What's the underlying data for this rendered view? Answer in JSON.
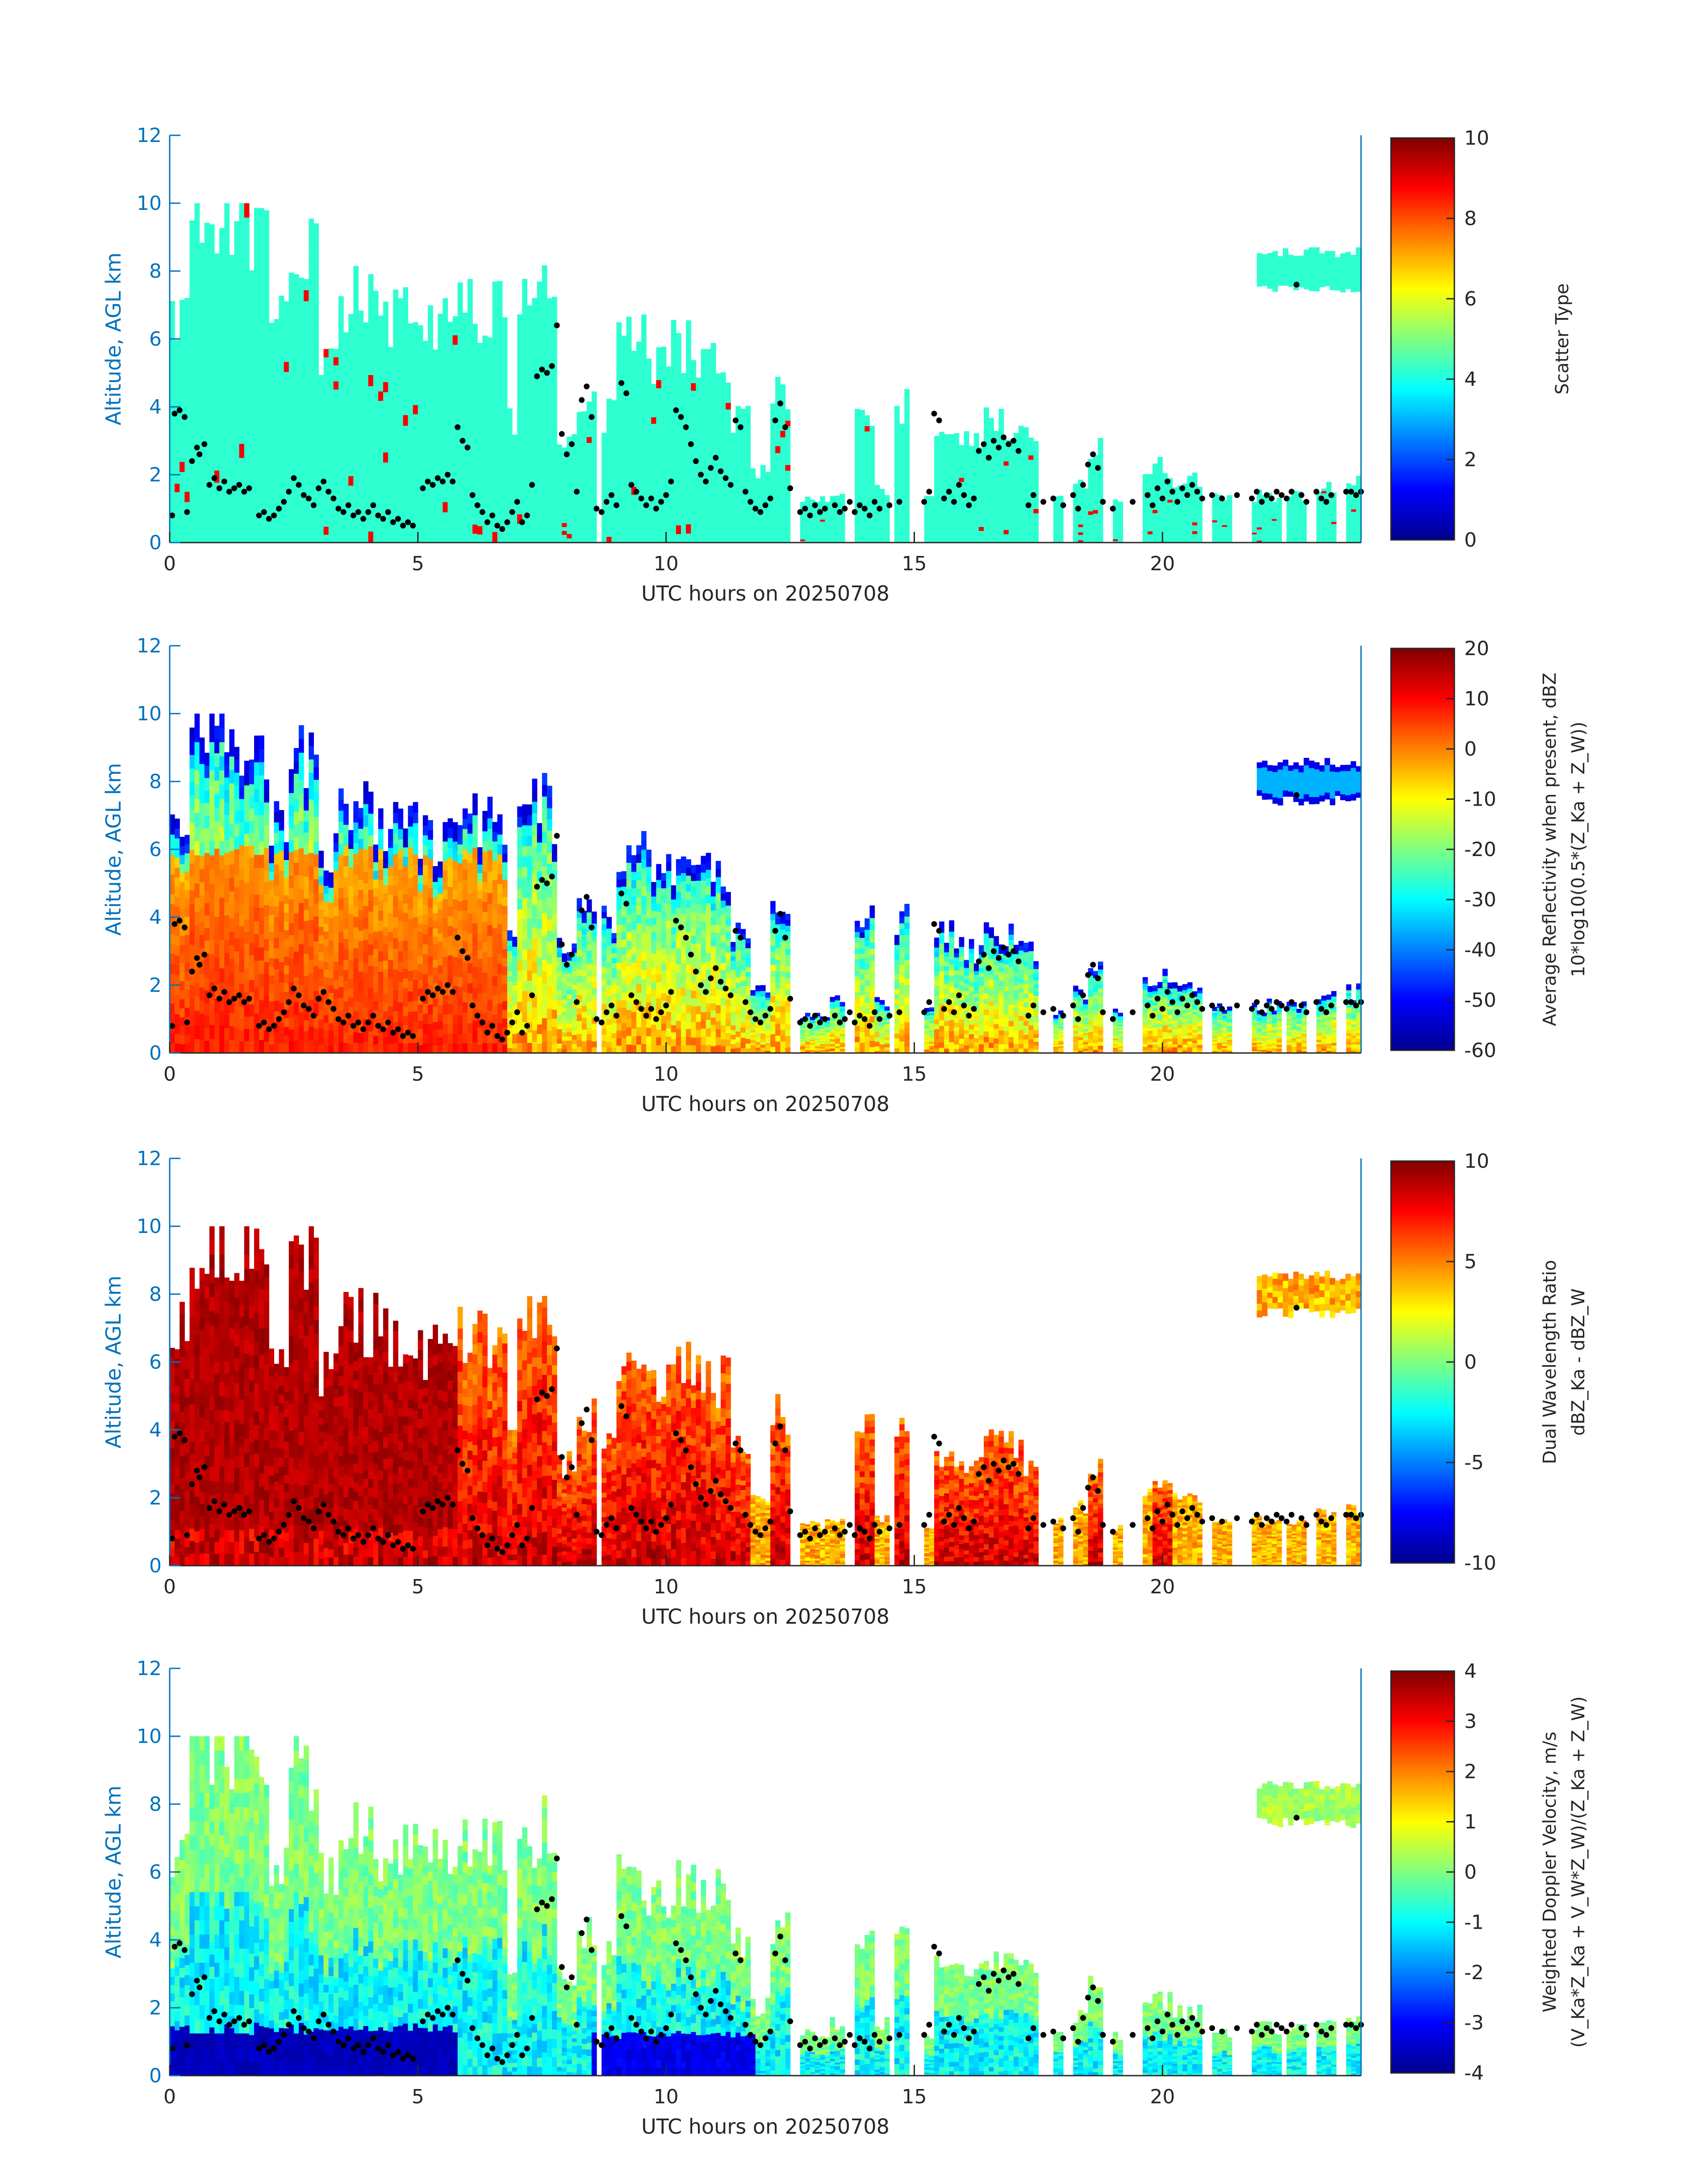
{
  "palette": {
    "axis_blue": "#0072BD",
    "axis_dark": "#262626",
    "jet": [
      "#00008F",
      "#0000FF",
      "#0080FF",
      "#00FFFF",
      "#80FF80",
      "#FFFF00",
      "#FF8000",
      "#FF0000",
      "#800000"
    ],
    "point": "#000000"
  },
  "chart_data": [
    {
      "type": "heatmap",
      "xlabel": "UTC hours on 20250708",
      "ylabel": "Altitude, AGL km",
      "xlim": [
        0,
        24
      ],
      "ylim": [
        0,
        12
      ],
      "xticks": [
        0,
        5,
        10,
        15,
        20
      ],
      "yticks": [
        0,
        2,
        4,
        6,
        8,
        10,
        12
      ],
      "colorbar": {
        "label": "Scatter Type",
        "label_sub": "",
        "clim": [
          0,
          10
        ],
        "ticks": [
          0,
          2,
          4,
          6,
          8,
          10
        ]
      },
      "dominant_value": 4.2
    },
    {
      "type": "heatmap",
      "xlabel": "UTC hours on 20250708",
      "ylabel": "Altitude, AGL km",
      "xlim": [
        0,
        24
      ],
      "ylim": [
        0,
        12
      ],
      "xticks": [
        0,
        5,
        10,
        15,
        20
      ],
      "yticks": [
        0,
        2,
        4,
        6,
        8,
        10,
        12
      ],
      "colorbar": {
        "label": "Average Reflectivity when present, dBZ",
        "label_sub": "10*log10(0.5*(Z_Ka + Z_W))",
        "clim": [
          -60,
          20
        ],
        "ticks": [
          -60,
          -50,
          -40,
          -30,
          -20,
          -10,
          0,
          10,
          20
        ]
      }
    },
    {
      "type": "heatmap",
      "xlabel": "UTC hours on 20250708",
      "ylabel": "Altitude, AGL km",
      "xlim": [
        0,
        24
      ],
      "ylim": [
        0,
        12
      ],
      "xticks": [
        0,
        5,
        10,
        15,
        20
      ],
      "yticks": [
        0,
        2,
        4,
        6,
        8,
        10,
        12
      ],
      "colorbar": {
        "label": "Dual Wavelength Ratio",
        "label_sub": "dBZ_Ka - dBZ_W",
        "clim": [
          -10,
          10
        ],
        "ticks": [
          -10,
          -5,
          0,
          5,
          10
        ]
      }
    },
    {
      "type": "heatmap",
      "xlabel": "UTC hours on 20250708",
      "ylabel": "Altitude, AGL km",
      "xlim": [
        0,
        24
      ],
      "ylim": [
        0,
        12
      ],
      "xticks": [
        0,
        5,
        10,
        15,
        20
      ],
      "yticks": [
        0,
        2,
        4,
        6,
        8,
        10,
        12
      ],
      "colorbar": {
        "label": "Weighted Doppler Velocity, m/s",
        "label_sub": "(V_Ka*Z_Ka + V_W*Z_W)/(Z_Ka + Z_W)",
        "clim": [
          -4,
          4
        ],
        "ticks": [
          -4,
          -3,
          -2,
          -1,
          0,
          1,
          2,
          3,
          4
        ]
      }
    }
  ],
  "echo_segments": [
    {
      "t0": 0.0,
      "t1": 0.4,
      "top": 6.8
    },
    {
      "t0": 0.4,
      "t1": 1.2,
      "top": 9.6
    },
    {
      "t0": 1.2,
      "t1": 2.0,
      "top": 9.4
    },
    {
      "t0": 2.0,
      "t1": 2.4,
      "top": 6.5
    },
    {
      "t0": 2.4,
      "t1": 3.0,
      "top": 8.8
    },
    {
      "t0": 3.0,
      "t1": 3.4,
      "top": 5.8
    },
    {
      "t0": 3.4,
      "t1": 4.2,
      "top": 7.2
    },
    {
      "t0": 4.2,
      "t1": 5.0,
      "top": 6.6
    },
    {
      "t0": 5.0,
      "t1": 5.8,
      "top": 6.4
    },
    {
      "t0": 5.8,
      "t1": 6.8,
      "top": 6.8
    },
    {
      "t0": 6.8,
      "t1": 7.0,
      "top": 3.5
    },
    {
      "t0": 7.0,
      "t1": 7.8,
      "top": 7.2
    },
    {
      "t0": 7.8,
      "t1": 8.2,
      "top": 3.0
    },
    {
      "t0": 8.2,
      "t1": 8.6,
      "top": 4.4
    },
    {
      "t0": 8.7,
      "t1": 9.0,
      "top": 3.8
    },
    {
      "t0": 9.0,
      "t1": 9.6,
      "top": 6.0
    },
    {
      "t0": 9.6,
      "t1": 10.1,
      "top": 5.4
    },
    {
      "t0": 10.1,
      "t1": 10.6,
      "top": 5.8
    },
    {
      "t0": 10.6,
      "t1": 11.3,
      "top": 5.4
    },
    {
      "t0": 11.3,
      "t1": 11.7,
      "top": 3.8
    },
    {
      "t0": 11.7,
      "t1": 12.1,
      "top": 2.0
    },
    {
      "t0": 12.1,
      "t1": 12.5,
      "top": 4.4
    },
    {
      "t0": 12.7,
      "t1": 13.3,
      "top": 1.2
    },
    {
      "t0": 13.3,
      "t1": 13.6,
      "top": 1.5
    },
    {
      "t0": 13.8,
      "t1": 14.2,
      "top": 4.0
    },
    {
      "t0": 14.2,
      "t1": 14.5,
      "top": 1.5
    },
    {
      "t0": 14.6,
      "t1": 14.9,
      "top": 4.0
    },
    {
      "t0": 15.2,
      "t1": 15.4,
      "top": 1.2
    },
    {
      "t0": 15.4,
      "t1": 15.9,
      "top": 3.4
    },
    {
      "t0": 15.9,
      "t1": 16.4,
      "top": 3.0
    },
    {
      "t0": 16.4,
      "t1": 17.2,
      "top": 3.5
    },
    {
      "t0": 17.2,
      "t1": 17.5,
      "top": 3.0
    },
    {
      "t0": 17.8,
      "t1": 18.0,
      "top": 1.3
    },
    {
      "t0": 18.2,
      "t1": 18.5,
      "top": 1.8
    },
    {
      "t0": 18.5,
      "t1": 18.8,
      "top": 2.8
    },
    {
      "t0": 19.0,
      "t1": 19.2,
      "top": 1.2
    },
    {
      "t0": 19.6,
      "t1": 20.2,
      "top": 2.2
    },
    {
      "t0": 20.2,
      "t1": 20.8,
      "top": 1.9
    },
    {
      "t0": 21.0,
      "t1": 21.4,
      "top": 1.3
    },
    {
      "t0": 21.8,
      "t1": 22.4,
      "top": 1.4
    },
    {
      "t0": 22.5,
      "t1": 22.9,
      "top": 1.4
    },
    {
      "t0": 23.1,
      "t1": 23.5,
      "top": 1.6
    },
    {
      "t0": 23.7,
      "t1": 24.0,
      "top": 1.8
    }
  ],
  "upper_cloud": {
    "t0": 21.9,
    "t1": 24.0,
    "base": 7.3,
    "top": 8.7
  },
  "cloud_base_points": [
    [
      0.05,
      0.8
    ],
    [
      0.1,
      3.8
    ],
    [
      0.2,
      3.9
    ],
    [
      0.3,
      3.7
    ],
    [
      0.35,
      0.9
    ],
    [
      0.45,
      2.4
    ],
    [
      0.55,
      2.8
    ],
    [
      0.6,
      2.6
    ],
    [
      0.7,
      2.9
    ],
    [
      0.8,
      1.7
    ],
    [
      0.9,
      1.9
    ],
    [
      1.0,
      1.6
    ],
    [
      1.1,
      1.8
    ],
    [
      1.2,
      1.5
    ],
    [
      1.3,
      1.6
    ],
    [
      1.4,
      1.7
    ],
    [
      1.5,
      1.5
    ],
    [
      1.6,
      1.6
    ],
    [
      1.8,
      0.8
    ],
    [
      1.9,
      0.9
    ],
    [
      2.0,
      0.7
    ],
    [
      2.1,
      0.8
    ],
    [
      2.2,
      1.0
    ],
    [
      2.3,
      1.2
    ],
    [
      2.4,
      1.5
    ],
    [
      2.5,
      1.9
    ],
    [
      2.6,
      1.7
    ],
    [
      2.7,
      1.4
    ],
    [
      2.8,
      1.3
    ],
    [
      2.9,
      1.1
    ],
    [
      3.0,
      1.6
    ],
    [
      3.1,
      1.8
    ],
    [
      3.2,
      1.5
    ],
    [
      3.3,
      1.3
    ],
    [
      3.4,
      1.0
    ],
    [
      3.5,
      0.9
    ],
    [
      3.6,
      1.1
    ],
    [
      3.7,
      0.8
    ],
    [
      3.8,
      0.9
    ],
    [
      3.9,
      0.7
    ],
    [
      4.0,
      0.9
    ],
    [
      4.1,
      1.1
    ],
    [
      4.2,
      0.8
    ],
    [
      4.3,
      0.7
    ],
    [
      4.4,
      0.9
    ],
    [
      4.5,
      0.6
    ],
    [
      4.6,
      0.7
    ],
    [
      4.7,
      0.5
    ],
    [
      4.8,
      0.6
    ],
    [
      4.9,
      0.5
    ],
    [
      5.1,
      1.6
    ],
    [
      5.2,
      1.8
    ],
    [
      5.3,
      1.7
    ],
    [
      5.4,
      1.9
    ],
    [
      5.5,
      1.8
    ],
    [
      5.6,
      2.0
    ],
    [
      5.7,
      1.8
    ],
    [
      5.8,
      3.4
    ],
    [
      5.9,
      3.0
    ],
    [
      6.0,
      2.8
    ],
    [
      6.1,
      1.4
    ],
    [
      6.2,
      1.1
    ],
    [
      6.3,
      0.9
    ],
    [
      6.4,
      0.6
    ],
    [
      6.5,
      0.8
    ],
    [
      6.6,
      0.5
    ],
    [
      6.7,
      0.4
    ],
    [
      6.8,
      0.6
    ],
    [
      6.9,
      0.9
    ],
    [
      7.0,
      1.2
    ],
    [
      7.1,
      0.6
    ],
    [
      7.2,
      0.8
    ],
    [
      7.3,
      1.7
    ],
    [
      7.4,
      4.9
    ],
    [
      7.5,
      5.1
    ],
    [
      7.6,
      5.0
    ],
    [
      7.7,
      5.2
    ],
    [
      7.8,
      6.4
    ],
    [
      7.9,
      3.2
    ],
    [
      8.0,
      2.6
    ],
    [
      8.1,
      2.9
    ],
    [
      8.2,
      1.5
    ],
    [
      8.3,
      4.2
    ],
    [
      8.4,
      4.6
    ],
    [
      8.5,
      3.7
    ],
    [
      8.6,
      1.0
    ],
    [
      8.7,
      0.9
    ],
    [
      8.8,
      1.2
    ],
    [
      8.9,
      1.4
    ],
    [
      9.0,
      1.1
    ],
    [
      9.1,
      4.7
    ],
    [
      9.2,
      4.4
    ],
    [
      9.3,
      1.7
    ],
    [
      9.4,
      1.5
    ],
    [
      9.5,
      1.3
    ],
    [
      9.6,
      1.1
    ],
    [
      9.7,
      1.3
    ],
    [
      9.8,
      1.0
    ],
    [
      9.9,
      1.2
    ],
    [
      10.0,
      1.4
    ],
    [
      10.1,
      1.8
    ],
    [
      10.2,
      3.9
    ],
    [
      10.3,
      3.7
    ],
    [
      10.4,
      3.4
    ],
    [
      10.5,
      2.9
    ],
    [
      10.6,
      2.4
    ],
    [
      10.7,
      2.0
    ],
    [
      10.8,
      1.8
    ],
    [
      10.9,
      2.2
    ],
    [
      11.0,
      2.5
    ],
    [
      11.1,
      2.1
    ],
    [
      11.2,
      1.9
    ],
    [
      11.3,
      1.7
    ],
    [
      11.4,
      3.6
    ],
    [
      11.5,
      3.4
    ],
    [
      11.6,
      1.5
    ],
    [
      11.7,
      1.2
    ],
    [
      11.8,
      1.0
    ],
    [
      11.9,
      0.9
    ],
    [
      12.0,
      1.1
    ],
    [
      12.1,
      1.3
    ],
    [
      12.2,
      3.6
    ],
    [
      12.3,
      4.1
    ],
    [
      12.4,
      3.4
    ],
    [
      12.5,
      1.6
    ],
    [
      12.7,
      0.9
    ],
    [
      12.8,
      1.0
    ],
    [
      12.9,
      0.8
    ],
    [
      13.0,
      1.1
    ],
    [
      13.1,
      0.9
    ],
    [
      13.2,
      1.0
    ],
    [
      13.4,
      1.1
    ],
    [
      13.5,
      0.9
    ],
    [
      13.6,
      1.0
    ],
    [
      13.7,
      1.2
    ],
    [
      13.8,
      0.9
    ],
    [
      13.9,
      1.1
    ],
    [
      14.0,
      1.0
    ],
    [
      14.1,
      0.8
    ],
    [
      14.2,
      1.2
    ],
    [
      14.3,
      1.0
    ],
    [
      14.5,
      1.1
    ],
    [
      14.7,
      1.2
    ],
    [
      15.2,
      1.2
    ],
    [
      15.3,
      1.5
    ],
    [
      15.4,
      3.8
    ],
    [
      15.5,
      3.6
    ],
    [
      15.6,
      1.3
    ],
    [
      15.7,
      1.5
    ],
    [
      15.8,
      1.2
    ],
    [
      15.9,
      1.7
    ],
    [
      16.0,
      1.4
    ],
    [
      16.1,
      1.1
    ],
    [
      16.2,
      1.3
    ],
    [
      16.3,
      2.7
    ],
    [
      16.4,
      2.9
    ],
    [
      16.5,
      2.5
    ],
    [
      16.6,
      3.0
    ],
    [
      16.7,
      2.8
    ],
    [
      16.8,
      3.1
    ],
    [
      16.9,
      2.9
    ],
    [
      17.0,
      3.0
    ],
    [
      17.1,
      2.7
    ],
    [
      17.3,
      1.1
    ],
    [
      17.4,
      1.4
    ],
    [
      17.6,
      1.2
    ],
    [
      17.8,
      1.3
    ],
    [
      18.0,
      1.1
    ],
    [
      18.2,
      1.4
    ],
    [
      18.3,
      1.0
    ],
    [
      18.4,
      1.7
    ],
    [
      18.5,
      2.3
    ],
    [
      18.6,
      2.6
    ],
    [
      18.7,
      2.2
    ],
    [
      18.8,
      1.2
    ],
    [
      19.0,
      1.0
    ],
    [
      19.4,
      1.2
    ],
    [
      19.7,
      1.4
    ],
    [
      19.8,
      1.1
    ],
    [
      19.9,
      1.6
    ],
    [
      20.0,
      1.3
    ],
    [
      20.1,
      1.8
    ],
    [
      20.2,
      1.5
    ],
    [
      20.3,
      1.2
    ],
    [
      20.4,
      1.6
    ],
    [
      20.5,
      1.4
    ],
    [
      20.6,
      1.7
    ],
    [
      20.7,
      1.5
    ],
    [
      20.8,
      1.3
    ],
    [
      21.0,
      1.4
    ],
    [
      21.2,
      1.3
    ],
    [
      21.5,
      1.4
    ],
    [
      21.8,
      1.3
    ],
    [
      21.9,
      1.5
    ],
    [
      22.0,
      1.2
    ],
    [
      22.1,
      1.4
    ],
    [
      22.2,
      1.3
    ],
    [
      22.3,
      1.5
    ],
    [
      22.4,
      1.4
    ],
    [
      22.5,
      1.3
    ],
    [
      22.6,
      1.5
    ],
    [
      22.7,
      7.6
    ],
    [
      22.8,
      1.4
    ],
    [
      22.9,
      1.2
    ],
    [
      23.1,
      1.5
    ],
    [
      23.2,
      1.3
    ],
    [
      23.3,
      1.2
    ],
    [
      23.4,
      1.4
    ],
    [
      23.7,
      1.5
    ],
    [
      23.8,
      1.5
    ],
    [
      23.9,
      1.4
    ],
    [
      24.0,
      1.5
    ]
  ]
}
